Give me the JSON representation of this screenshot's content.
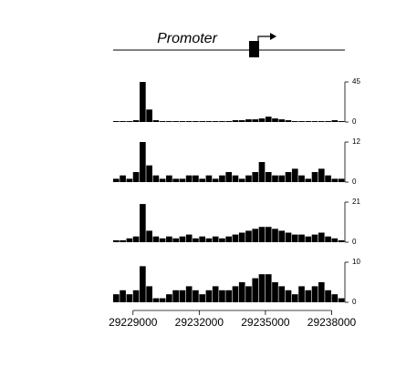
{
  "diagram": {
    "label": "Promoter"
  },
  "chart_data": [
    {
      "type": "histogram",
      "color": "#000000",
      "bins": [
        29228100,
        29228400,
        29228700,
        29229000,
        29229300,
        29229600,
        29229900,
        29230200,
        29230500,
        29230800,
        29231100,
        29231400,
        29231700,
        29232000,
        29232300,
        29232600,
        29232900,
        29233200,
        29233500,
        29233800,
        29234100,
        29234400,
        29234700,
        29235000,
        29235300,
        29235600,
        29235900,
        29236200,
        29236500,
        29236800,
        29237100,
        29237400,
        29237700,
        29238000,
        29238300,
        29238600
      ],
      "values": [
        1,
        1,
        1,
        2,
        45,
        14,
        2,
        1,
        1,
        1,
        1,
        1,
        1,
        1,
        1,
        1,
        1,
        1,
        2,
        2,
        3,
        3,
        4,
        6,
        4,
        3,
        2,
        1,
        1,
        1,
        1,
        1,
        1,
        2,
        1
      ],
      "xlim": [
        29228100,
        29238600
      ],
      "ylim": [
        0,
        45
      ],
      "yticks": [
        0,
        45
      ]
    },
    {
      "type": "histogram",
      "color": "#000000",
      "bins": [
        29228100,
        29228400,
        29228700,
        29229000,
        29229300,
        29229600,
        29229900,
        29230200,
        29230500,
        29230800,
        29231100,
        29231400,
        29231700,
        29232000,
        29232300,
        29232600,
        29232900,
        29233200,
        29233500,
        29233800,
        29234100,
        29234400,
        29234700,
        29235000,
        29235300,
        29235600,
        29235900,
        29236200,
        29236500,
        29236800,
        29237100,
        29237400,
        29237700,
        29238000,
        29238300,
        29238600
      ],
      "values": [
        1,
        2,
        1,
        3,
        12,
        5,
        2,
        1,
        2,
        1,
        1,
        2,
        2,
        1,
        2,
        1,
        2,
        3,
        2,
        1,
        2,
        3,
        6,
        3,
        2,
        2,
        3,
        4,
        2,
        1,
        3,
        4,
        2,
        1,
        1
      ],
      "xlim": [
        29228100,
        29238600
      ],
      "ylim": [
        0,
        12
      ],
      "yticks": [
        0,
        12
      ]
    },
    {
      "type": "histogram",
      "color": "#000000",
      "bins": [
        29228100,
        29228400,
        29228700,
        29229000,
        29229300,
        29229600,
        29229900,
        29230200,
        29230500,
        29230800,
        29231100,
        29231400,
        29231700,
        29232000,
        29232300,
        29232600,
        29232900,
        29233200,
        29233500,
        29233800,
        29234100,
        29234400,
        29234700,
        29235000,
        29235300,
        29235600,
        29235900,
        29236200,
        29236500,
        29236800,
        29237100,
        29237400,
        29237700,
        29238000,
        29238300,
        29238600
      ],
      "values": [
        1,
        1,
        2,
        3,
        20,
        6,
        3,
        2,
        3,
        2,
        3,
        4,
        2,
        3,
        2,
        3,
        2,
        3,
        4,
        5,
        6,
        7,
        8,
        8,
        7,
        6,
        5,
        4,
        4,
        3,
        4,
        5,
        3,
        2,
        1
      ],
      "xlim": [
        29228100,
        29238600
      ],
      "ylim": [
        0,
        21
      ],
      "yticks": [
        0,
        21
      ]
    },
    {
      "type": "histogram",
      "color": "#000000",
      "bins": [
        29228100,
        29228400,
        29228700,
        29229000,
        29229300,
        29229600,
        29229900,
        29230200,
        29230500,
        29230800,
        29231100,
        29231400,
        29231700,
        29232000,
        29232300,
        29232600,
        29232900,
        29233200,
        29233500,
        29233800,
        29234100,
        29234400,
        29234700,
        29235000,
        29235300,
        29235600,
        29235900,
        29236200,
        29236500,
        29236800,
        29237100,
        29237400,
        29237700,
        29238000,
        29238300,
        29238600
      ],
      "values": [
        2,
        3,
        2,
        3,
        9,
        4,
        1,
        1,
        2,
        3,
        3,
        4,
        3,
        2,
        3,
        4,
        3,
        3,
        4,
        5,
        4,
        6,
        7,
        7,
        5,
        4,
        3,
        2,
        4,
        3,
        4,
        5,
        3,
        2,
        1
      ],
      "xlim": [
        29228100,
        29238600
      ],
      "ylim": [
        0,
        10
      ],
      "yticks": [
        0,
        10
      ],
      "xticks": [
        29229000,
        29232000,
        29235000,
        29238000
      ]
    }
  ]
}
